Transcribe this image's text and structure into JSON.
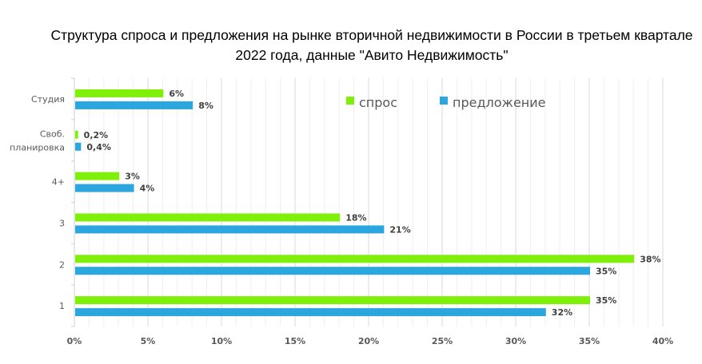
{
  "chart_data": {
    "type": "bar",
    "orientation": "horizontal",
    "title": "Структура спроса и предложения на рынке вторичной недвижимости в России в третьем квартале 2022 года, данные \"Авито Недвижимость\"",
    "categories": [
      "Студия",
      "Своб. планировка",
      "4+",
      "3",
      "2",
      "1"
    ],
    "series": [
      {
        "name": "спрос",
        "color": "#7FF00A",
        "values": [
          6,
          0.2,
          3,
          18,
          38,
          35
        ],
        "labels": [
          "6%",
          "0,2%",
          "3%",
          "18%",
          "38%",
          "35%"
        ]
      },
      {
        "name": "предложение",
        "color": "#2CA6DE",
        "values": [
          8,
          0.4,
          4,
          21,
          35,
          32
        ],
        "labels": [
          "8%",
          "0,4%",
          "4%",
          "21%",
          "35%",
          "32%"
        ]
      }
    ],
    "xlim": [
      0,
      40
    ],
    "xticks": [
      "0%",
      "5%",
      "10%",
      "15%",
      "20%",
      "25%",
      "30%",
      "35%",
      "40%"
    ],
    "grid": "vertical major and minor",
    "legend": "top-right, inside plot"
  }
}
